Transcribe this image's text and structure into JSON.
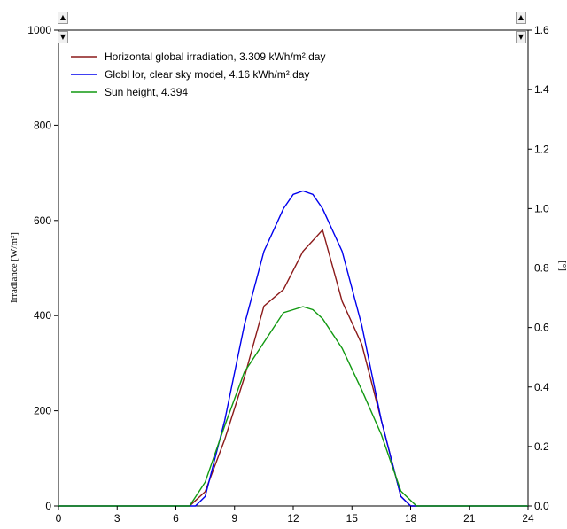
{
  "chart_data": {
    "type": "line",
    "title": "",
    "xlabel": "",
    "ylabel_left": "Irradiance  [W/m²]",
    "ylabel_right": "[°]",
    "xlim": [
      0,
      24
    ],
    "ylim_left": [
      0,
      1000
    ],
    "ylim_right": [
      0.0,
      1.6
    ],
    "x_ticks": [
      0,
      3,
      6,
      9,
      12,
      15,
      18,
      21,
      24
    ],
    "y_left_ticks": [
      0,
      200,
      400,
      600,
      800,
      1000
    ],
    "y_right_ticks": [
      "0.0",
      "0.2",
      "0.4",
      "0.6",
      "0.8",
      "1.0",
      "1.2",
      "1.4",
      "1.6"
    ],
    "grid": false,
    "legend_position": "top-left",
    "series": [
      {
        "name": "Horizontal global irradiation,  3.309 kWh/m².day",
        "color": "#8b1a1a",
        "axis": "left",
        "x": [
          0,
          6.7,
          7.5,
          8.5,
          9.5,
          10.5,
          11.5,
          12.5,
          13.5,
          14.5,
          15.5,
          16.5,
          17.5,
          18,
          24
        ],
        "y": [
          0,
          0,
          30,
          140,
          270,
          420,
          455,
          535,
          580,
          430,
          340,
          180,
          20,
          0,
          0
        ]
      },
      {
        "name": "GlobHor, clear sky model,  4.16 kWh/m².day",
        "color": "#0000ee",
        "axis": "left",
        "x": [
          0,
          7,
          7.5,
          8.5,
          9.5,
          10.5,
          11.5,
          12.0,
          12.5,
          13.0,
          13.5,
          14.5,
          15.5,
          16.5,
          17.5,
          18,
          24
        ],
        "y": [
          0,
          0,
          20,
          180,
          380,
          535,
          625,
          655,
          662,
          655,
          625,
          535,
          380,
          180,
          20,
          0,
          0
        ]
      },
      {
        "name": "Sun height,  4.394",
        "color": "#119911",
        "axis": "right",
        "x": [
          0,
          6.7,
          7.5,
          8.5,
          9.5,
          10.5,
          11.5,
          12.0,
          12.5,
          13.0,
          13.5,
          14.5,
          15.5,
          16.5,
          17.5,
          18.3,
          24
        ],
        "y": [
          0,
          0,
          0.08,
          0.27,
          0.45,
          0.55,
          0.65,
          0.66,
          0.67,
          0.66,
          0.63,
          0.53,
          0.39,
          0.24,
          0.05,
          0.0,
          0
        ]
      }
    ]
  }
}
